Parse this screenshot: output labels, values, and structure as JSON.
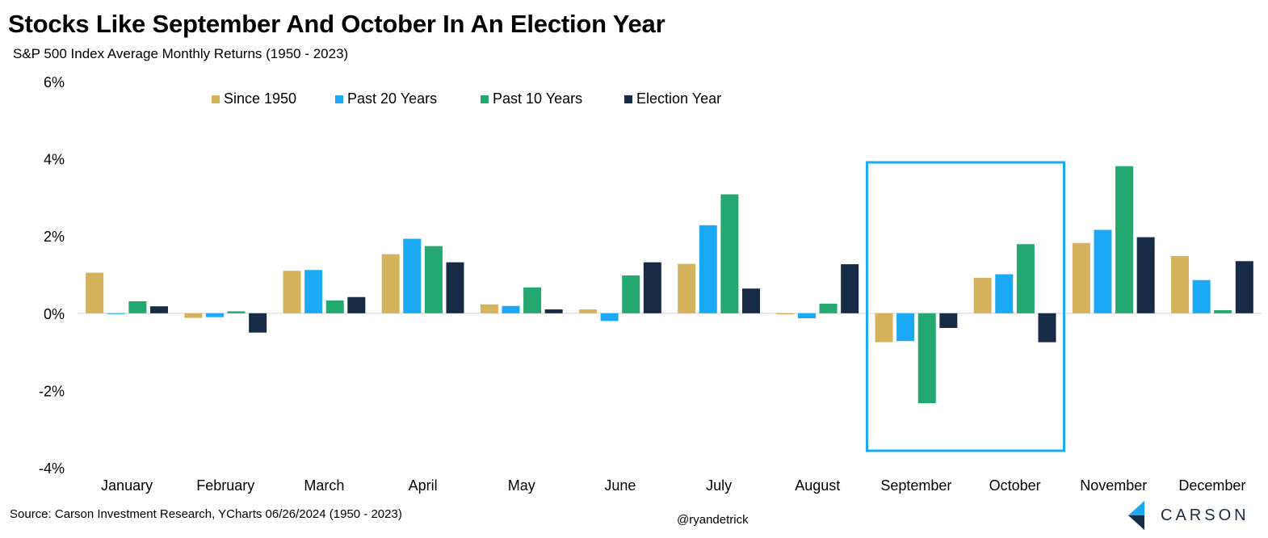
{
  "header": {
    "title": "Stocks Like September And October In An Election Year",
    "subtitle": "S&P 500 Index Average Monthly Returns (1950 - 2023)"
  },
  "footer": {
    "source": "Source: Carson Investment Research, YCharts 06/26/2024 (1950 - 2023)",
    "handle": "@ryandetrick",
    "brand": "CARSON"
  },
  "chart_data": {
    "type": "bar",
    "categories": [
      "January",
      "February",
      "March",
      "April",
      "May",
      "June",
      "July",
      "August",
      "September",
      "October",
      "November",
      "December"
    ],
    "series": [
      {
        "name": "Since 1950",
        "color": "#d4b35c",
        "values": [
          1.05,
          -0.12,
          1.1,
          1.53,
          0.23,
          0.1,
          1.28,
          -0.03,
          -0.75,
          0.92,
          1.82,
          1.48
        ]
      },
      {
        "name": "Past 20 Years",
        "color": "#1ba9f5",
        "values": [
          -0.02,
          -0.1,
          1.12,
          1.93,
          0.19,
          -0.2,
          2.28,
          -0.13,
          -0.72,
          1.01,
          2.16,
          0.86
        ]
      },
      {
        "name": "Past 10 Years",
        "color": "#23a970",
        "values": [
          0.31,
          0.05,
          0.33,
          1.74,
          0.67,
          0.98,
          3.08,
          0.25,
          -2.33,
          1.79,
          3.81,
          0.08
        ]
      },
      {
        "name": "Election Year",
        "color": "#172b47",
        "values": [
          0.18,
          -0.5,
          0.42,
          1.32,
          0.1,
          1.32,
          0.64,
          1.27,
          -0.38,
          -0.75,
          1.97,
          1.35
        ]
      }
    ],
    "y_ticks": [
      {
        "value": 6,
        "label": "6%"
      },
      {
        "value": 4,
        "label": "4%"
      },
      {
        "value": 2,
        "label": "2%"
      },
      {
        "value": 0,
        "label": "0%"
      },
      {
        "value": -2,
        "label": "-2%"
      },
      {
        "value": -4,
        "label": "-4%"
      }
    ],
    "ylim": [
      -4,
      6
    ],
    "grid": false,
    "legend_position": "top",
    "highlight": {
      "categories": [
        "September",
        "October"
      ],
      "color": "#1ba9f5"
    }
  }
}
